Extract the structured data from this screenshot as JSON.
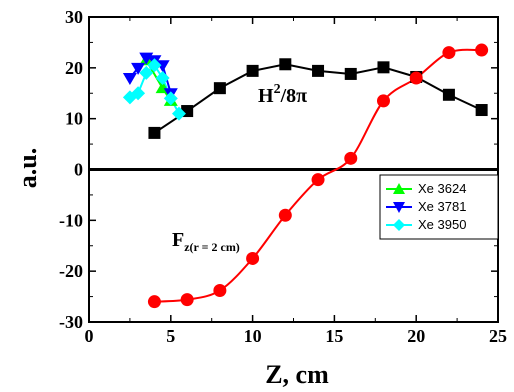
{
  "chart_data": {
    "type": "line",
    "xlabel": "Z, cm",
    "ylabel": "a.u.",
    "xlim": [
      0,
      25
    ],
    "ylim": [
      -30,
      30
    ],
    "xticks": [
      0,
      5,
      10,
      15,
      20,
      25
    ],
    "yticks": [
      -30,
      -20,
      -10,
      0,
      10,
      20,
      30
    ],
    "grid": false,
    "zero_line": true,
    "annotations": {
      "h_label": {
        "main": "H",
        "sup": "2",
        "tail": "/8π"
      },
      "f_label": {
        "main": "F",
        "sub": "z(r = 2 cm)"
      }
    },
    "legend": {
      "placement": "right-middle",
      "entries": [
        "Xe 3624",
        "Xe 3781",
        "Xe 3950"
      ]
    },
    "series": [
      {
        "key": "h2",
        "color": "#000000",
        "marker": "square",
        "x": [
          4,
          6,
          8,
          10,
          12,
          14,
          16,
          18,
          20,
          22,
          24
        ],
        "y": [
          7.2,
          11.5,
          16,
          19.4,
          20.7,
          19.4,
          18.8,
          20.1,
          18.2,
          14.7,
          11.7
        ]
      },
      {
        "key": "fz",
        "color": "#ff0000",
        "marker": "circle",
        "x": [
          4,
          6,
          8,
          10,
          12,
          14,
          16,
          18,
          20,
          22,
          24
        ],
        "y": [
          -26,
          -25.6,
          -23.8,
          -17.5,
          -9,
          -2,
          2.2,
          13.5,
          18,
          23,
          23.5
        ]
      },
      {
        "key": "xe3624",
        "name": "Xe 3624",
        "color": "#00ff00",
        "marker": "triangle-up",
        "x": [
          3.5,
          4.5,
          5
        ],
        "y": [
          21.5,
          16,
          13.5
        ]
      },
      {
        "key": "xe3781",
        "name": "Xe 3781",
        "color": "#0000ff",
        "marker": "triangle-down",
        "x": [
          2.5,
          3,
          3.5,
          4,
          4.5,
          5
        ],
        "y": [
          18,
          20,
          22,
          21.5,
          20.5,
          15
        ]
      },
      {
        "key": "xe3950",
        "name": "Xe 3950",
        "color": "#00ffff",
        "marker": "diamond",
        "x": [
          2.5,
          3,
          3.5,
          4,
          4.5,
          5,
          5.5
        ],
        "y": [
          14.2,
          15,
          19,
          20.5,
          18,
          14,
          11
        ]
      }
    ]
  }
}
